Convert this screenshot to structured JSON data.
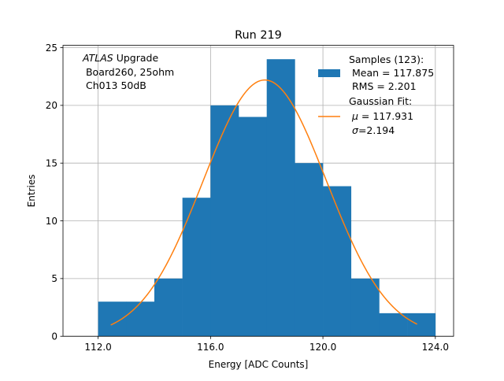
{
  "chart_data": {
    "type": "bar",
    "title": "Run 219",
    "xlabel": "Energy [ADC Counts]",
    "ylabel": "Entries",
    "xlim": [
      110.75,
      124.65
    ],
    "ylim": [
      0,
      25.2
    ],
    "xticks": [
      112.0,
      116.0,
      120.0,
      124.0
    ],
    "xtick_labels": [
      "112.0",
      "116.0",
      "120.0",
      "124.0"
    ],
    "yticks": [
      0,
      5,
      10,
      15,
      20,
      25
    ],
    "ytick_labels": [
      "0",
      "5",
      "10",
      "15",
      "20",
      "25"
    ],
    "grid": true,
    "bar_color": "#1f77b4",
    "fit_color": "#ff7f0e",
    "bins": [
      {
        "x0": 112,
        "x1": 113,
        "value": 3
      },
      {
        "x0": 113,
        "x1": 114,
        "value": 3
      },
      {
        "x0": 114,
        "x1": 115,
        "value": 5
      },
      {
        "x0": 115,
        "x1": 116,
        "value": 12
      },
      {
        "x0": 116,
        "x1": 117,
        "value": 20
      },
      {
        "x0": 117,
        "x1": 118,
        "value": 19
      },
      {
        "x0": 118,
        "x1": 119,
        "value": 24
      },
      {
        "x0": 119,
        "x1": 120,
        "value": 15
      },
      {
        "x0": 120,
        "x1": 121,
        "value": 13
      },
      {
        "x0": 121,
        "x1": 122,
        "value": 5
      },
      {
        "x0": 122,
        "x1": 123,
        "value": 2
      },
      {
        "x0": 123,
        "x1": 124,
        "value": 2
      }
    ],
    "fit": {
      "mu": 117.931,
      "sigma": 2.194,
      "amplitude": 22.2,
      "x_range": [
        112.45,
        123.35
      ]
    },
    "annotation": {
      "italic_part": "ATLAS",
      "line1_rest": " Upgrade",
      "line2": " Board260, 25ohm",
      "line3": " Ch013 50dB"
    },
    "legend": {
      "location": "upper right",
      "samples_line1": "Samples (123):",
      "samples_line2": " Mean = 117.875",
      "samples_line3": " RMS = 2.201",
      "fit_line1": "Gaussian Fit:",
      "fit_mu_symbol": "μ",
      "fit_mu_value": " = 117.931",
      "fit_sigma_symbol": "σ",
      "fit_sigma_value": "=2.194"
    }
  }
}
